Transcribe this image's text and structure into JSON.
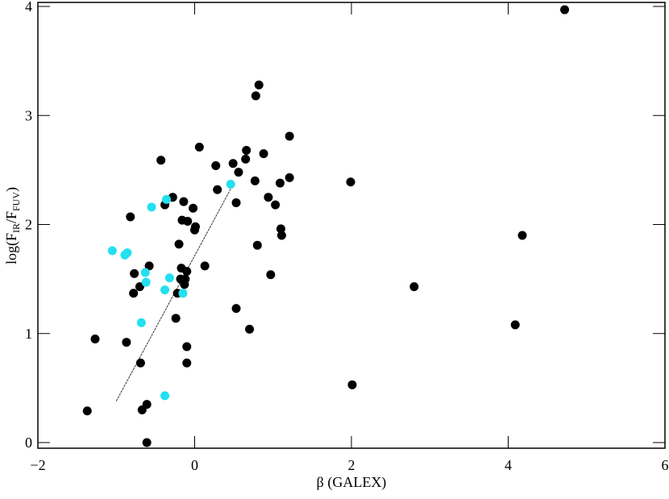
{
  "chart_data": {
    "type": "scatter",
    "x_label": "β (GALEX)",
    "y_label": [
      {
        "text": "log(F"
      },
      {
        "sub": "IR"
      },
      {
        "text": "/F"
      },
      {
        "sub": "FUV"
      },
      {
        "text": ")"
      }
    ],
    "xlim": [
      -2,
      6
    ],
    "ylim": [
      0,
      4
    ],
    "xticks": [
      {
        "value": -2,
        "label": "−2"
      },
      0,
      2,
      4,
      6
    ],
    "yticks": [
      0,
      1,
      2,
      3,
      4
    ],
    "series": [
      {
        "color": "#000000",
        "x": [
          -1.37,
          -1.27,
          -0.87,
          -0.82,
          -0.77,
          -0.78,
          -0.7,
          -0.69,
          -0.67,
          -0.61,
          -0.61,
          -0.58,
          -0.43,
          -0.38,
          -0.28,
          -0.24,
          -0.22,
          -0.2,
          -0.18,
          -0.17,
          -0.16,
          -0.14,
          -0.13,
          -0.12,
          -0.1,
          -0.1,
          -0.1,
          -0.09,
          -0.02,
          0.0,
          0.01,
          0.06,
          0.13,
          0.27,
          0.29,
          0.49,
          0.53,
          0.53,
          0.56,
          0.65,
          0.66,
          0.7,
          0.77,
          0.78,
          0.82,
          0.8,
          0.88,
          0.94,
          0.97,
          1.03,
          1.09,
          1.1,
          1.11,
          1.21,
          1.21,
          1.99,
          2.01,
          2.8,
          4.09,
          4.18,
          4.72
        ],
        "values": [
          0.29,
          0.95,
          0.92,
          2.07,
          1.55,
          1.37,
          1.43,
          0.73,
          0.3,
          0.35,
          0.0,
          1.62,
          2.59,
          2.18,
          2.25,
          1.14,
          1.37,
          1.82,
          1.5,
          1.6,
          2.04,
          2.21,
          1.45,
          1.5,
          1.57,
          0.88,
          0.73,
          2.03,
          2.15,
          1.95,
          1.98,
          2.71,
          1.62,
          2.54,
          2.32,
          2.56,
          2.2,
          1.23,
          2.48,
          2.6,
          2.68,
          1.04,
          2.4,
          3.18,
          3.28,
          1.81,
          2.65,
          2.25,
          1.54,
          2.18,
          2.38,
          1.96,
          1.9,
          2.43,
          2.81,
          2.39,
          0.53,
          1.43,
          1.08,
          1.9,
          3.97
        ]
      },
      {
        "color": "#22e0f0",
        "x": [
          -1.05,
          -0.89,
          -0.86,
          -0.55,
          -0.68,
          -0.63,
          -0.62,
          -0.38,
          -0.36,
          -0.32,
          -0.38,
          -0.15,
          0.46
        ],
        "values": [
          1.76,
          1.72,
          1.74,
          2.16,
          1.1,
          1.56,
          1.47,
          1.4,
          2.23,
          1.51,
          0.43,
          1.37,
          2.37
        ]
      }
    ],
    "fit_line": {
      "x": [
        -1.0,
        0.5
      ],
      "y": [
        0.38,
        2.38
      ],
      "color": "#333333"
    }
  }
}
